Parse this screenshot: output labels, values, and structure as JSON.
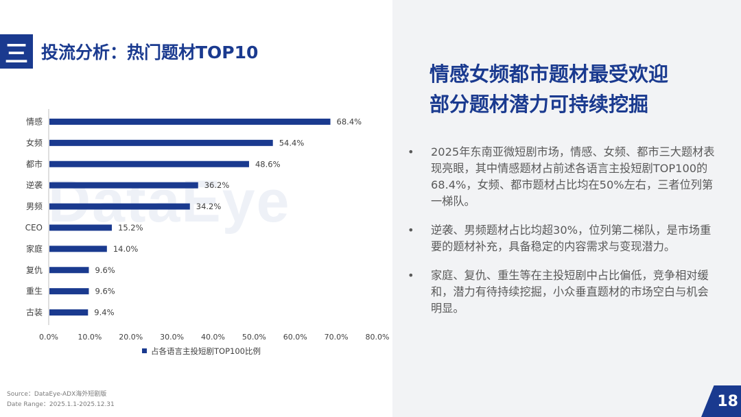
{
  "section": {
    "badge": "三",
    "title": "投流分析：热门题材TOP10"
  },
  "watermark": "DataEye",
  "colors": {
    "accent": "#1a3a8f",
    "bar": "#1a3a8f"
  },
  "chart_data": {
    "type": "bar",
    "orientation": "horizontal",
    "categories": [
      "情感",
      "女频",
      "都市",
      "逆袭",
      "男频",
      "CEO",
      "家庭",
      "复仇",
      "重生",
      "古装"
    ],
    "values": [
      68.4,
      54.4,
      48.6,
      36.2,
      34.2,
      15.2,
      14.0,
      9.6,
      9.6,
      9.4
    ],
    "value_labels": [
      "68.4%",
      "54.4%",
      "48.6%",
      "36.2%",
      "34.2%",
      "15.2%",
      "14.0%",
      "9.6%",
      "9.6%",
      "9.4%"
    ],
    "xlim": [
      0,
      80
    ],
    "x_ticks": [
      "0.0%",
      "10.0%",
      "20.0%",
      "30.0%",
      "40.0%",
      "50.0%",
      "60.0%",
      "70.0%",
      "80.0%"
    ],
    "legend": "占各语言主投短剧TOP100比例",
    "legend_position": "bottom"
  },
  "source": {
    "line1": "Source：DataEye-ADX海外短剧版",
    "line2": "Date Range：2025.1.1-2025.12.31"
  },
  "headline": {
    "line1": "情感女频都市题材最受欢迎",
    "line2": "部分题材潜力可持续挖掘"
  },
  "bullet_marker": "•",
  "bullets": [
    "2025年东南亚微短剧市场，情感、女频、都市三大题材表现亮眼，其中情感题材占前述各语言主投短剧TOP100的68.4%，女频、都市题材占比均在50%左右，三者位列第一梯队。",
    "逆袭、男频题材占比均超30%，位列第二梯队，是市场重要的题材补充，具备稳定的内容需求与变现潜力。",
    "家庭、复仇、重生等在主投短剧中占比偏低，竞争相对缓和，潜力有待持续挖掘，小众垂直题材的市场空白与机会明显。"
  ],
  "page_number": "18"
}
